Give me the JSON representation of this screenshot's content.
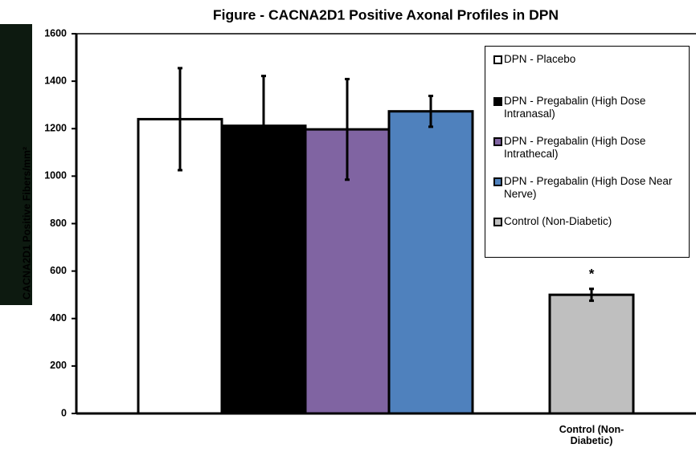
{
  "chart_data": {
    "type": "bar",
    "title": "Figure - CACNA2D1 Positive Axonal Profiles in DPN",
    "y_label": "CACNA2D1 Positive Fibers/mm²",
    "categories": [
      null,
      "Control (Non-Diabetic)"
    ],
    "series": [
      {
        "name": "DPN - Placebo",
        "color": "#ffffff",
        "values": [
          1240,
          null
        ],
        "errors": [
          215,
          null
        ]
      },
      {
        "name": "DPN - Pregabalin (High Dose Intranasal)",
        "color": "#000000",
        "values": [
          1212,
          null
        ],
        "errors": [
          210,
          null
        ]
      },
      {
        "name": "DPN - Pregabalin (High Dose Intrathecal)",
        "color": "#8064a2",
        "values": [
          1197,
          null
        ],
        "errors": [
          212,
          null
        ]
      },
      {
        "name": "DPN - Pregabalin (High Dose Near Nerve)",
        "color": "#4f81bd",
        "values": [
          1273,
          null
        ],
        "errors": [
          65,
          null
        ]
      },
      {
        "name": "Control (Non-Diabetic)",
        "color": "#bfbfbf",
        "values": [
          null,
          500
        ],
        "errors": [
          null,
          25
        ]
      }
    ],
    "annotation": "*",
    "ylim": [
      0,
      1600
    ],
    "yticks": [
      0,
      200,
      400,
      600,
      800,
      1000,
      1200,
      1400,
      1600
    ],
    "grid": false
  }
}
